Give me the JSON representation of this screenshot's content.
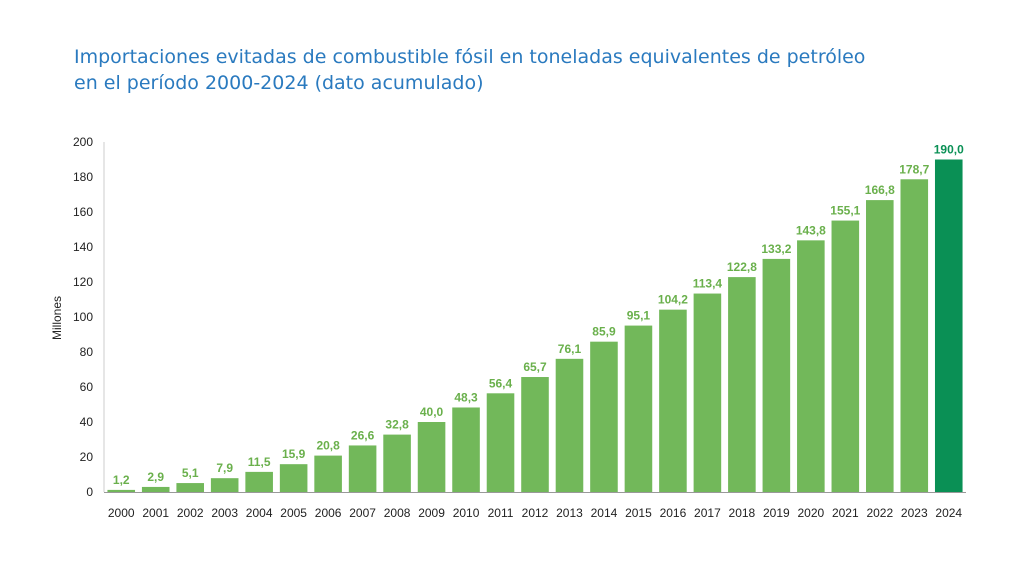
{
  "title_line1": "Importaciones evitadas de combustible fósil en toneladas equivalentes de petróleo",
  "title_line2": "en el período 2000-2024 (dato acumulado)",
  "colors": {
    "bar": "#72b85a",
    "highlight": "#0a9055",
    "label": "#6ab04c",
    "highlight_label": "#0a9055",
    "title": "#2a7abf",
    "axis_text": "#222222"
  },
  "chart_data": {
    "type": "bar",
    "ylabel": "Millones",
    "ylim": [
      0,
      200
    ],
    "yticks": [
      0,
      20,
      40,
      60,
      80,
      100,
      120,
      140,
      160,
      180,
      200
    ],
    "categories": [
      "2000",
      "2001",
      "2002",
      "2003",
      "2004",
      "2005",
      "2006",
      "2007",
      "2008",
      "2009",
      "2010",
      "2011",
      "2012",
      "2013",
      "2014",
      "2015",
      "2016",
      "2017",
      "2018",
      "2019",
      "2020",
      "2021",
      "2022",
      "2023",
      "2024"
    ],
    "values": [
      1.2,
      2.9,
      5.1,
      7.9,
      11.5,
      15.9,
      20.8,
      26.6,
      32.8,
      40.0,
      48.3,
      56.4,
      65.7,
      76.1,
      85.9,
      95.1,
      104.2,
      113.4,
      122.8,
      133.2,
      143.8,
      155.1,
      166.8,
      178.7,
      190.0
    ],
    "value_labels": [
      "1,2",
      "2,9",
      "5,1",
      "7,9",
      "11,5",
      "15,9",
      "20,8",
      "26,6",
      "32,8",
      "40,0",
      "48,3",
      "56,4",
      "65,7",
      "76,1",
      "85,9",
      "95,1",
      "104,2",
      "113,4",
      "122,8",
      "133,2",
      "143,8",
      "155,1",
      "166,8",
      "178,7",
      "190,0"
    ],
    "highlight_index": 24
  }
}
